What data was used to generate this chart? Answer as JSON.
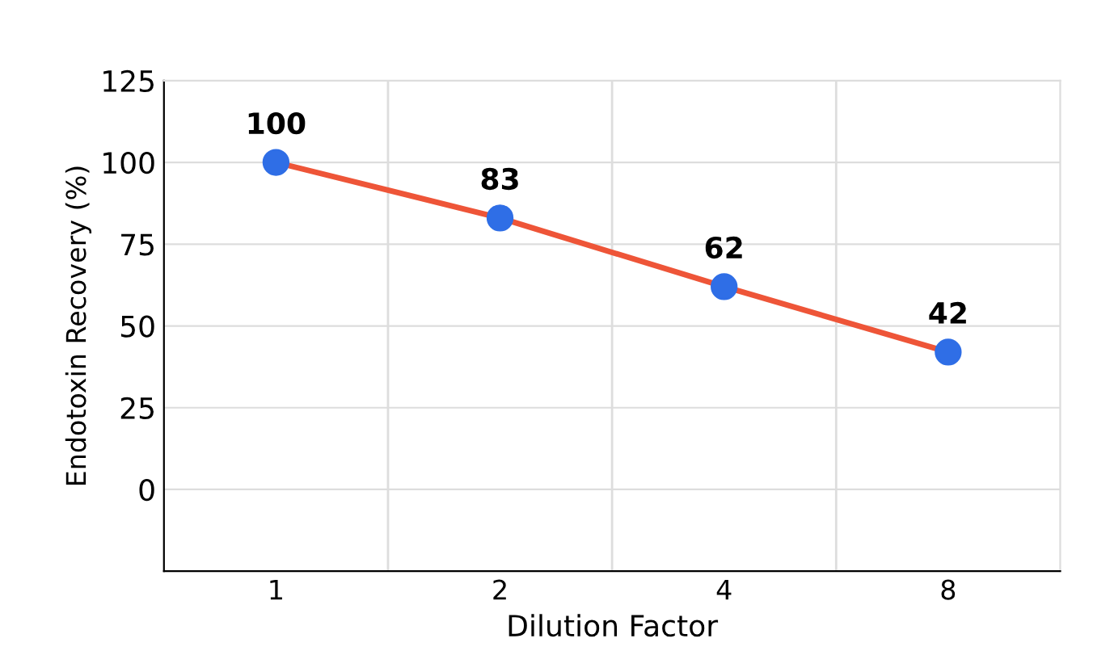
{
  "chart_data": {
    "type": "line",
    "xlabel": "Dilution Factor",
    "ylabel": "Endotoxin Recovery (%)",
    "categories": [
      "1",
      "2",
      "4",
      "8"
    ],
    "series": [
      {
        "color": "#ee5538",
        "colors": [
          "#2f6ee6",
          "#2f6ee6",
          "#2f6ee6",
          "#2f6ee6"
        ],
        "values": [
          100,
          83,
          62,
          42
        ]
      }
    ],
    "ylim": [
      -25,
      125
    ],
    "yticks": [
      0,
      25,
      50,
      75,
      100,
      125
    ],
    "grid": true,
    "marker": "circle",
    "line_style": "solid",
    "data_labels": true
  }
}
